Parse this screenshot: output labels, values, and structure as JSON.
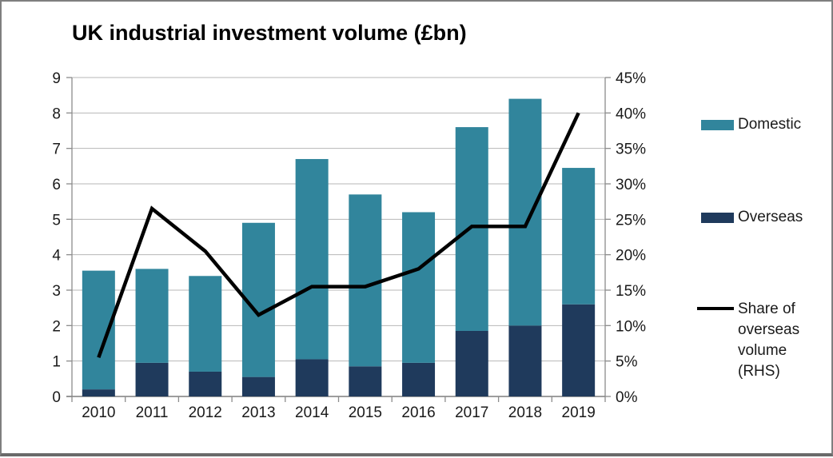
{
  "chart": {
    "title": "UK industrial investment volume (£bn)",
    "legend": [
      {
        "label": "Domestic",
        "type": "bar"
      },
      {
        "label": "Overseas",
        "type": "bar"
      },
      {
        "label": "Share of overseas volume (RHS)",
        "type": "line"
      }
    ]
  },
  "chart_data": {
    "type": "bar",
    "subtype": "stacked-bars-with-line",
    "title": "UK industrial investment volume (£bn)",
    "categories": [
      "2010",
      "2011",
      "2012",
      "2013",
      "2014",
      "2015",
      "2016",
      "2017",
      "2018",
      "2019"
    ],
    "series": [
      {
        "name": "Domestic",
        "type": "bar",
        "stack": "volume",
        "axis": "left",
        "color": "#31859c",
        "values": [
          3.35,
          2.65,
          2.7,
          4.35,
          5.65,
          4.85,
          4.25,
          5.75,
          6.4,
          3.85
        ]
      },
      {
        "name": "Overseas",
        "type": "bar",
        "stack": "volume",
        "axis": "left",
        "color": "#1f3a5c",
        "values": [
          0.2,
          0.95,
          0.7,
          0.55,
          1.05,
          0.85,
          0.95,
          1.85,
          2.0,
          2.6
        ]
      },
      {
        "name": "Share of overseas volume (RHS)",
        "type": "line",
        "axis": "right",
        "color": "#000000",
        "values": [
          5.5,
          26.5,
          20.5,
          11.5,
          15.5,
          15.5,
          18,
          24,
          24,
          40
        ]
      }
    ],
    "stacked_totals": [
      3.55,
      3.6,
      3.4,
      4.9,
      6.7,
      5.7,
      5.2,
      7.6,
      8.4,
      6.45
    ],
    "axes": {
      "left": {
        "min": 0,
        "max": 9,
        "step": 1,
        "format": "number"
      },
      "right": {
        "min": 0,
        "max": 45,
        "step": 5,
        "format": "percent"
      }
    },
    "grid": true,
    "legend_position": "right",
    "colors": {
      "gridline": "#b7b7b7",
      "axis": "#8c8c8c",
      "x_axis": "#7f7f7f"
    }
  }
}
